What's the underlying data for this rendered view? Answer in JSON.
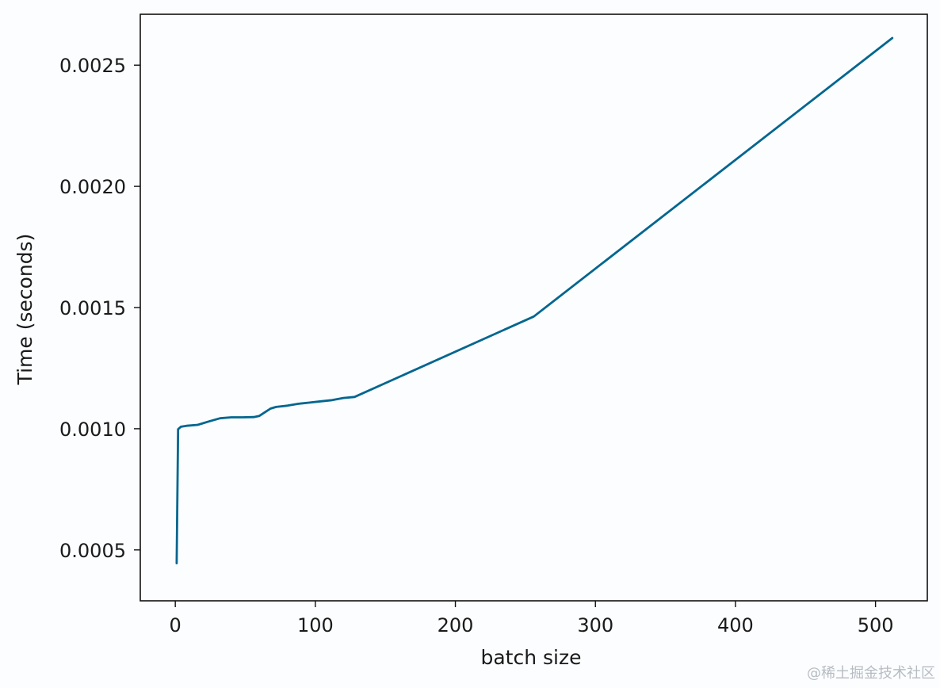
{
  "chart_data": {
    "type": "line",
    "title": "",
    "xlabel": "batch size",
    "ylabel": "Time (seconds)",
    "xlim": [
      -25,
      537
    ],
    "ylim": [
      0.00029,
      0.00271
    ],
    "xticks": [
      0,
      100,
      200,
      300,
      400,
      500
    ],
    "xtick_labels": [
      "0",
      "100",
      "200",
      "300",
      "400",
      "500"
    ],
    "yticks": [
      0.0005,
      0.001,
      0.0015,
      0.002,
      0.0025
    ],
    "ytick_labels": [
      "0.0005",
      "0.0010",
      "0.0015",
      "0.0020",
      "0.0025"
    ],
    "grid": false,
    "legend": "none",
    "line_color": "#02668f",
    "series": [
      {
        "x": [
          1,
          2,
          4,
          8,
          16,
          24,
          32,
          40,
          48,
          56,
          60,
          64,
          68,
          72,
          80,
          88,
          96,
          104,
          112,
          120,
          128,
          256,
          512
        ],
        "y": [
          0.000445,
          0.000998,
          0.001008,
          0.001012,
          0.001016,
          0.00103,
          0.001043,
          0.001047,
          0.001047,
          0.001048,
          0.001053,
          0.001068,
          0.001083,
          0.00109,
          0.001095,
          0.001103,
          0.001108,
          0.001113,
          0.001118,
          0.001127,
          0.001131,
          0.001463,
          0.002612
        ]
      }
    ]
  },
  "watermark": "@稀土掘金技术社区"
}
